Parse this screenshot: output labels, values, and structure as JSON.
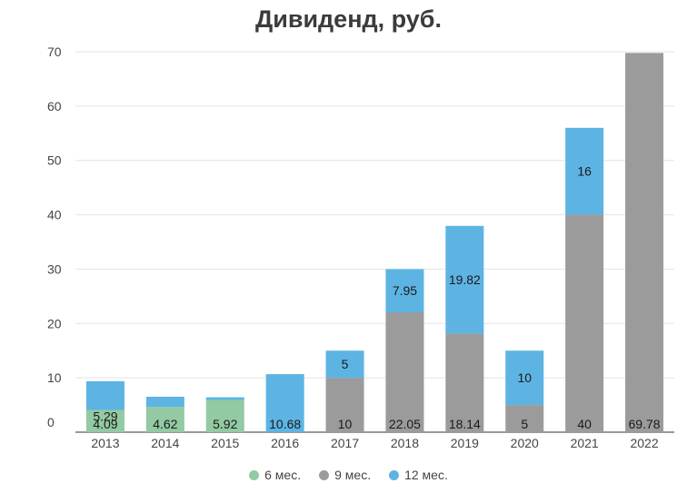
{
  "chart_data": {
    "type": "bar",
    "stacked": true,
    "title": "Дивиденд, руб.",
    "xlabel": "",
    "ylabel": "",
    "ylim": [
      0,
      70
    ],
    "yticks": [
      0,
      10,
      20,
      30,
      40,
      50,
      60,
      70
    ],
    "categories": [
      "2013",
      "2014",
      "2015",
      "2016",
      "2017",
      "2018",
      "2019",
      "2020",
      "2021",
      "2022"
    ],
    "series": [
      {
        "name": "6 мес.",
        "color": "#93c9a3",
        "values": [
          4.09,
          4.62,
          5.92,
          null,
          null,
          null,
          null,
          null,
          null,
          null
        ]
      },
      {
        "name": "9 мес.",
        "color": "#9b9b9b",
        "values": [
          null,
          null,
          null,
          null,
          10,
          22.05,
          18.14,
          5,
          40,
          69.78
        ]
      },
      {
        "name": "12 мес.",
        "color": "#5db4e3",
        "values": [
          5.29,
          1.9,
          0.5,
          10.68,
          5,
          7.95,
          19.82,
          10,
          16,
          null
        ]
      }
    ],
    "labels": [
      [
        "4.09",
        null,
        "5.29"
      ],
      [
        "4.62",
        null,
        null
      ],
      [
        "5.92",
        null,
        null
      ],
      [
        null,
        null,
        "10.68"
      ],
      [
        null,
        "10",
        "5"
      ],
      [
        null,
        "22.05",
        "7.95"
      ],
      [
        null,
        "18.14",
        "19.82"
      ],
      [
        null,
        "5",
        "10"
      ],
      [
        null,
        "40",
        "16"
      ],
      [
        null,
        "69.78",
        null
      ]
    ],
    "grid": true,
    "legend_position": "bottom"
  }
}
